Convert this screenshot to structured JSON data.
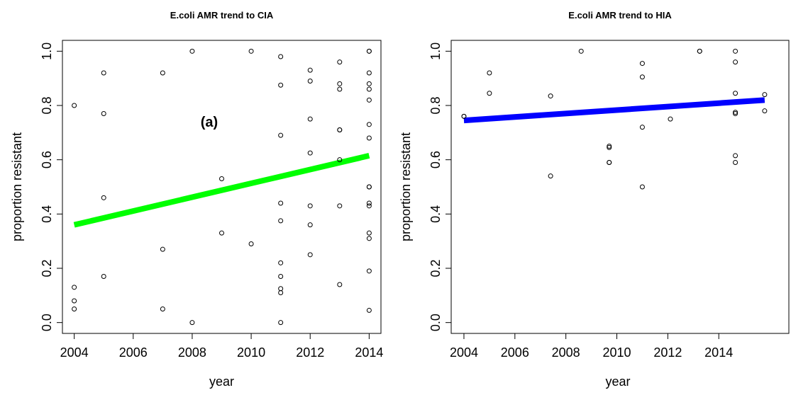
{
  "chart_data": [
    {
      "type": "scatter",
      "title": "E.coli AMR trend to CIA",
      "xlabel": "year",
      "ylabel": "proportion resistant",
      "annotation": "(a)",
      "x": [
        2004,
        2004,
        2004,
        2004,
        2005,
        2005,
        2005,
        2005,
        2007,
        2007,
        2007,
        2008,
        2008,
        2009,
        2009,
        2010,
        2010,
        2011,
        2011,
        2011,
        2011,
        2011,
        2011,
        2011,
        2011,
        2011,
        2011,
        2012,
        2012,
        2012,
        2012,
        2012,
        2012,
        2012,
        2013,
        2013,
        2013,
        2013,
        2013,
        2013,
        2013,
        2013,
        2014,
        2014,
        2014,
        2014,
        2014,
        2014,
        2014,
        2014,
        2014,
        2014,
        2014,
        2014,
        2014,
        2014,
        2014,
        2014
      ],
      "y": [
        0.8,
        0.13,
        0.08,
        0.05,
        0.92,
        0.77,
        0.46,
        0.17,
        0.92,
        0.27,
        0.05,
        1.0,
        0.0,
        0.53,
        0.33,
        1.0,
        0.29,
        0.98,
        0.875,
        0.69,
        0.44,
        0.375,
        0.22,
        0.17,
        0.125,
        0.11,
        0.0,
        0.93,
        0.89,
        0.75,
        0.625,
        0.43,
        0.36,
        0.25,
        0.96,
        0.88,
        0.86,
        0.71,
        0.71,
        0.6,
        0.43,
        0.14,
        1.0,
        1.0,
        0.92,
        0.88,
        0.86,
        0.82,
        0.73,
        0.68,
        0.5,
        0.5,
        0.44,
        0.43,
        0.33,
        0.31,
        0.19,
        0.045
      ],
      "trend": {
        "x": [
          2004,
          2014
        ],
        "y": [
          0.36,
          0.615
        ],
        "color": "#00ff00"
      },
      "xlim": [
        2003.6,
        2014.4
      ],
      "ylim": [
        -0.04,
        1.04
      ],
      "xticks": [
        2004,
        2006,
        2008,
        2010,
        2012,
        2014
      ],
      "yticks": [
        {
          "value": 0,
          "label": "0.0"
        },
        {
          "value": 0.2,
          "label": "0.2"
        },
        {
          "value": 0.4,
          "label": "0.4"
        },
        {
          "value": 0.6,
          "label": "0.6"
        },
        {
          "value": 0.8,
          "label": "0.8"
        },
        {
          "value": 1,
          "label": "1.0"
        }
      ]
    },
    {
      "type": "scatter",
      "title": "E.coli AMR trend to HIA",
      "xlabel": "year",
      "ylabel": "proportion resistant",
      "x": [
        2004,
        2004,
        2005,
        2005,
        2007.4,
        2007.4,
        2008.6,
        2009.7,
        2009.7,
        2009.7,
        2009.7,
        2011,
        2011,
        2011,
        2011,
        2012.1,
        2013.25,
        2013.25,
        2014.65,
        2014.65,
        2014.65,
        2014.65,
        2014.65,
        2014.65,
        2014.65,
        2015.8,
        2015.8
      ],
      "y": [
        0.76,
        0.76,
        0.92,
        0.845,
        0.835,
        0.54,
        1.0,
        0.65,
        0.645,
        0.59,
        0.59,
        0.955,
        0.905,
        0.72,
        0.5,
        0.75,
        1.0,
        1.0,
        1.0,
        0.96,
        0.845,
        0.775,
        0.77,
        0.615,
        0.59,
        0.84,
        0.78
      ],
      "trend": {
        "x": [
          2004,
          2015.8
        ],
        "y": [
          0.745,
          0.82
        ],
        "color": "#0000ff"
      },
      "xlim": [
        2003.5,
        2016.75
      ],
      "ylim": [
        -0.04,
        1.04
      ],
      "xticks": [
        2004,
        2006,
        2008,
        2010,
        2012,
        2014
      ],
      "yticks": [
        {
          "value": 0,
          "label": "0.0"
        },
        {
          "value": 0.2,
          "label": "0.2"
        },
        {
          "value": 0.4,
          "label": "0.4"
        },
        {
          "value": 0.6,
          "label": "0.6"
        },
        {
          "value": 0.8,
          "label": "0.8"
        },
        {
          "value": 1,
          "label": "1.0"
        }
      ]
    }
  ]
}
